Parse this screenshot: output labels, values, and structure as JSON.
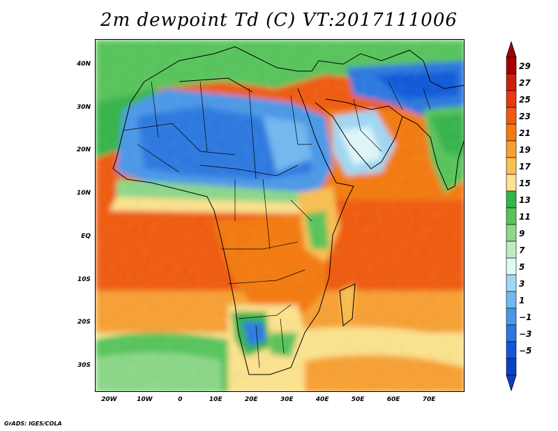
{
  "title": "2m dewpoint Td (C) VT:2017111006",
  "footer": "GrADS: IGES/COLA",
  "map": {
    "lon_range": [
      -24,
      80
    ],
    "lat_range": [
      -36,
      46
    ],
    "lat_ticks": [
      {
        "value": 40,
        "label": "40N"
      },
      {
        "value": 30,
        "label": "30N"
      },
      {
        "value": 20,
        "label": "20N"
      },
      {
        "value": 10,
        "label": "10N"
      },
      {
        "value": 0,
        "label": "EQ"
      },
      {
        "value": -10,
        "label": "10S"
      },
      {
        "value": -20,
        "label": "20S"
      },
      {
        "value": -30,
        "label": "30S"
      }
    ],
    "lon_ticks": [
      {
        "value": -20,
        "label": "20W"
      },
      {
        "value": -10,
        "label": "10W"
      },
      {
        "value": 0,
        "label": "0"
      },
      {
        "value": 10,
        "label": "10E"
      },
      {
        "value": 20,
        "label": "20E"
      },
      {
        "value": 30,
        "label": "30E"
      },
      {
        "value": 40,
        "label": "40E"
      },
      {
        "value": 50,
        "label": "50E"
      },
      {
        "value": 60,
        "label": "60E"
      },
      {
        "value": 70,
        "label": "70E"
      }
    ]
  },
  "colorbar": {
    "levels": [
      "29",
      "27",
      "25",
      "23",
      "21",
      "19",
      "17",
      "15",
      "13",
      "11",
      "9",
      "7",
      "5",
      "3",
      "1",
      "−1",
      "−3",
      "−5"
    ],
    "colors": [
      "#a50000",
      "#d21c0c",
      "#e8380f",
      "#f05a10",
      "#f47a10",
      "#f8a030",
      "#fac050",
      "#fce38c",
      "#34b44a",
      "#56c45a",
      "#8ad888",
      "#c0ecc0",
      "#e0f8fa",
      "#a0d8f4",
      "#70b8f0",
      "#4898e8",
      "#2a78e0",
      "#1058d8",
      "#0a40c8"
    ],
    "top_arrow_color": "#a50000",
    "bottom_arrow_color": "#0a40c8"
  }
}
